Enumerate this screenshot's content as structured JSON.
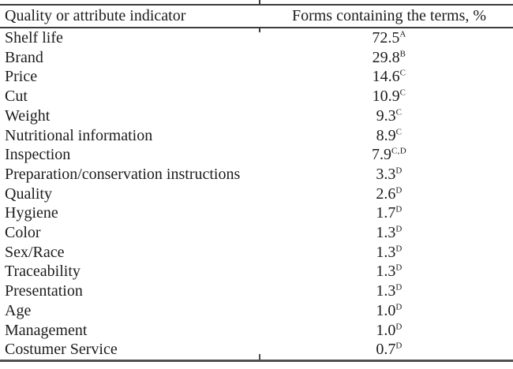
{
  "table": {
    "columns": [
      "Quality or attribute indicator",
      "Forms containing the terms, %"
    ],
    "rows": [
      {
        "label": "Shelf life",
        "value": "72.5",
        "sup": "A"
      },
      {
        "label": "Brand",
        "value": "29.8",
        "sup": "B"
      },
      {
        "label": "Price",
        "value": "14.6",
        "sup": "C"
      },
      {
        "label": "Cut",
        "value": "10.9",
        "sup": "C"
      },
      {
        "label": "Weight",
        "value": "9.3",
        "sup": "C"
      },
      {
        "label": "Nutritional information",
        "value": "8.9",
        "sup": "C"
      },
      {
        "label": "Inspection",
        "value": "7.9",
        "sup": "C,D"
      },
      {
        "label": "Preparation/conservation instructions",
        "value": "3.3",
        "sup": "D"
      },
      {
        "label": "Quality",
        "value": "2.6",
        "sup": "D"
      },
      {
        "label": "Hygiene",
        "value": "1.7",
        "sup": "D"
      },
      {
        "label": "Color",
        "value": "1.3",
        "sup": "D"
      },
      {
        "label": "Sex/Race",
        "value": "1.3",
        "sup": "D"
      },
      {
        "label": "Traceability",
        "value": "1.3",
        "sup": "D"
      },
      {
        "label": "Presentation",
        "value": "1.3",
        "sup": "D"
      },
      {
        "label": "Age",
        "value": "1.0",
        "sup": "D"
      },
      {
        "label": "Management",
        "value": "1.0",
        "sup": "D"
      },
      {
        "label": "Costumer Service",
        "value": "0.7",
        "sup": "D"
      }
    ]
  },
  "colors": {
    "text": "#1c1c1c",
    "rule": "#3c3c3c",
    "bottom_rule": "#4f4f4f"
  },
  "chart_data": {
    "type": "table",
    "title": "",
    "categories": [
      "Shelf life",
      "Brand",
      "Price",
      "Cut",
      "Weight",
      "Nutritional information",
      "Inspection",
      "Preparation/conservation instructions",
      "Quality",
      "Hygiene",
      "Color",
      "Sex/Race",
      "Traceability",
      "Presentation",
      "Age",
      "Management",
      "Costumer Service"
    ],
    "values": [
      72.5,
      29.8,
      14.6,
      10.9,
      9.3,
      8.9,
      7.9,
      3.3,
      2.6,
      1.7,
      1.3,
      1.3,
      1.3,
      1.3,
      1.0,
      1.0,
      0.7
    ],
    "significance_groups": [
      "A",
      "B",
      "C",
      "C",
      "C",
      "C",
      "C,D",
      "D",
      "D",
      "D",
      "D",
      "D",
      "D",
      "D",
      "D",
      "D",
      "D"
    ],
    "xlabel": "Quality or attribute indicator",
    "ylabel": "Forms containing the terms, %"
  }
}
